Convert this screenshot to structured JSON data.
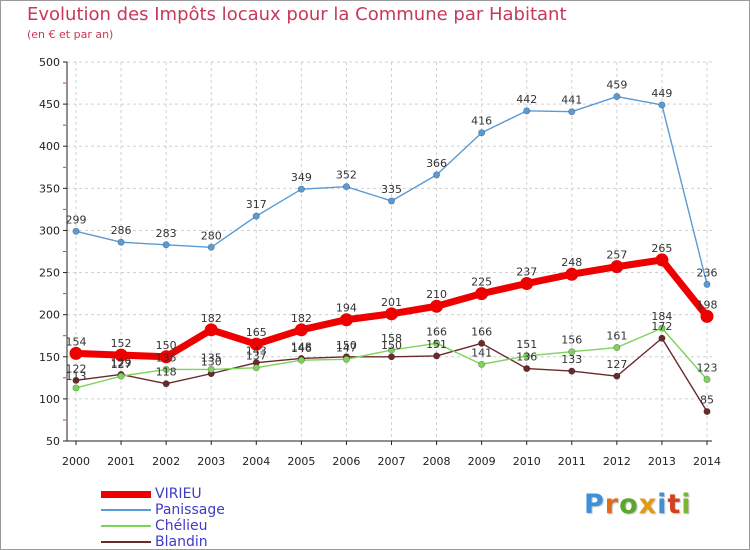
{
  "header": {
    "title": "Evolution des Impôts locaux pour la Commune par Habitant",
    "subtitle": "(en € et par an)"
  },
  "logo": {
    "text": "Proxiti",
    "letter_colors": [
      "#3c8fd8",
      "#e06b1c",
      "#5aa82b",
      "#e09a18",
      "#3c8fd8",
      "#d4401e",
      "#7ab62e"
    ]
  },
  "chart_data": {
    "type": "line",
    "x": [
      "2000",
      "2001",
      "2002",
      "2003",
      "2004",
      "2005",
      "2006",
      "2007",
      "2008",
      "2009",
      "2010",
      "2011",
      "2012",
      "2013",
      "2014"
    ],
    "ylim": [
      50,
      500
    ],
    "yticks": [
      "50",
      "100",
      "150",
      "200",
      "250",
      "300",
      "350",
      "400",
      "450",
      "500"
    ],
    "grid": true,
    "legend_position": "bottom-left",
    "series": [
      {
        "name": "VIRIEU",
        "color": "#ee0000",
        "values": [
          154,
          152,
          150,
          182,
          165,
          182,
          194,
          201,
          210,
          225,
          237,
          248,
          257,
          265,
          198
        ],
        "labels": [
          "154",
          "152",
          "150",
          "182",
          "165",
          "182",
          "194",
          "201",
          "210",
          "225",
          "237",
          "248",
          "257",
          "265",
          "198"
        ]
      },
      {
        "name": "Panissage",
        "color": "#5b9bd5",
        "values": [
          299,
          286,
          283,
          280,
          317,
          349,
          352,
          335,
          366,
          416,
          442,
          441,
          459,
          449,
          236
        ],
        "labels": [
          "299",
          "286",
          "283",
          "280",
          "317",
          "349",
          "352",
          "335",
          "366",
          "416",
          "442",
          "441",
          "459",
          "449",
          "236"
        ]
      },
      {
        "name": "Chélieu",
        "color": "#7ed35a",
        "values": [
          113,
          127,
          135,
          135,
          137,
          146,
          147,
          158,
          166,
          141,
          151,
          156,
          161,
          184,
          123
        ],
        "labels": [
          "113",
          "127",
          "135",
          "135",
          "137",
          "146",
          "147",
          "158",
          "166",
          "141",
          "151",
          "156",
          "161",
          "184",
          "123"
        ]
      },
      {
        "name": "Blandin",
        "color": "#6b2a2a",
        "values": [
          122,
          129,
          118,
          130,
          143,
          148,
          150,
          150,
          151,
          166,
          136,
          133,
          127,
          172,
          85
        ],
        "labels": [
          "122",
          "129",
          "118",
          "130",
          "143",
          "148",
          "150",
          "150",
          "151",
          "166",
          "136",
          "133",
          "127",
          "172",
          "85"
        ]
      }
    ]
  }
}
